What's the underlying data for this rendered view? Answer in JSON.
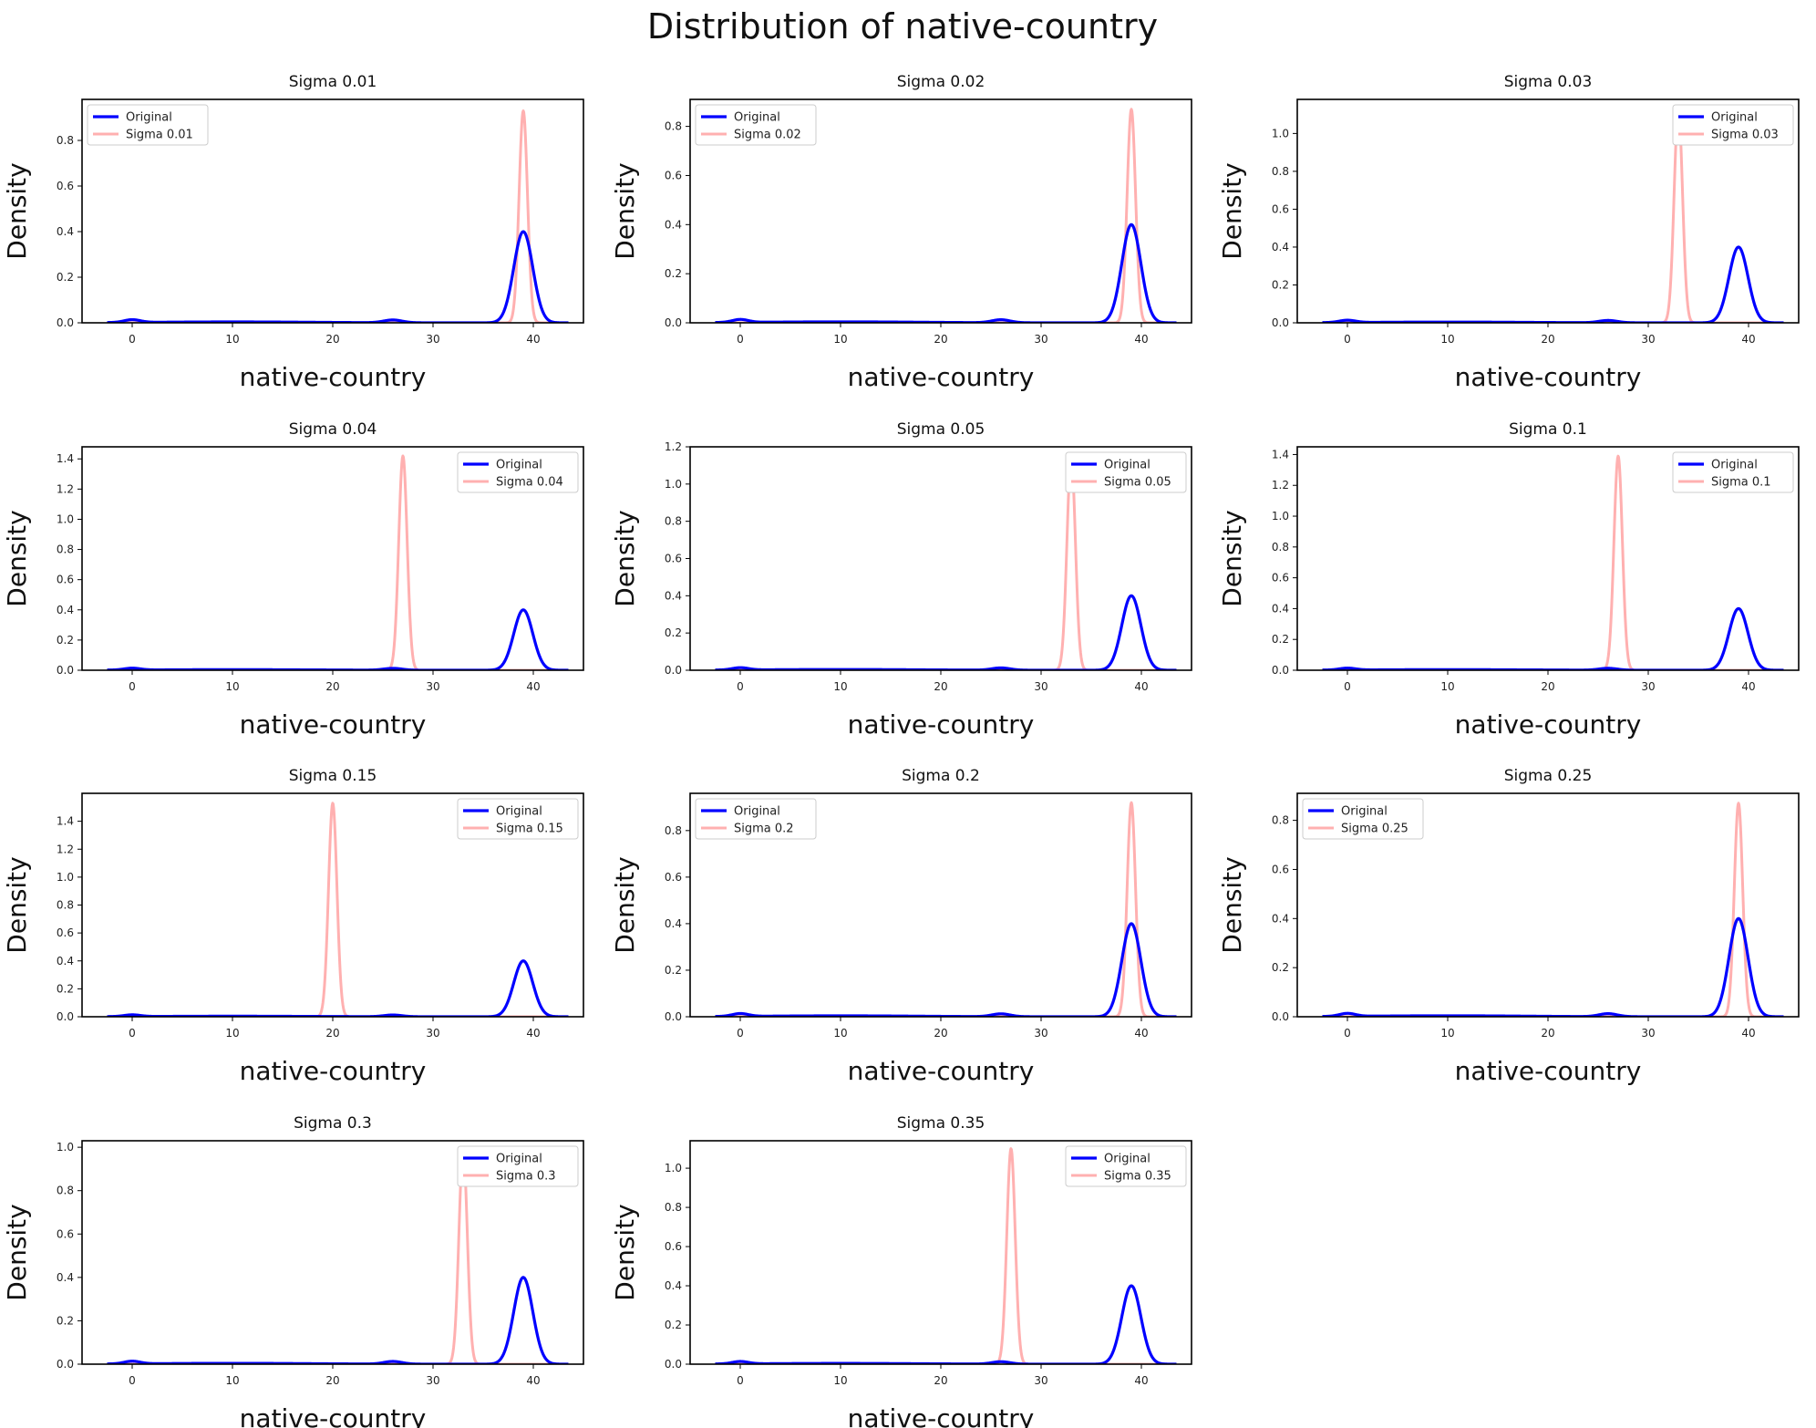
{
  "figure": {
    "title": "Distribution of native-country"
  },
  "colors": {
    "original": "#0000ff",
    "noisy": "#ffb0b0"
  },
  "chart_data": [
    {
      "type": "line",
      "title": "Sigma 0.01",
      "xlabel": "native-country",
      "ylabel": "Density",
      "xlim": [
        -5,
        45
      ],
      "xticks": [
        0,
        10,
        20,
        30,
        40
      ],
      "ylim": [
        0,
        0.98
      ],
      "yticks": [
        0.0,
        0.2,
        0.4,
        0.6,
        0.8
      ],
      "legend": "top-left",
      "series": [
        {
          "name": "Original",
          "role": "original",
          "peak_x": 39,
          "peak_y": 0.4
        },
        {
          "name": "Sigma 0.01",
          "role": "noisy",
          "peak_x": 39,
          "peak_y": 0.93
        }
      ]
    },
    {
      "type": "line",
      "title": "Sigma 0.02",
      "xlabel": "native-country",
      "ylabel": "Density",
      "xlim": [
        -5,
        45
      ],
      "xticks": [
        0,
        10,
        20,
        30,
        40
      ],
      "ylim": [
        0,
        0.91
      ],
      "yticks": [
        0.0,
        0.2,
        0.4,
        0.6,
        0.8
      ],
      "legend": "top-left",
      "series": [
        {
          "name": "Original",
          "role": "original",
          "peak_x": 39,
          "peak_y": 0.4
        },
        {
          "name": "Sigma 0.02",
          "role": "noisy",
          "peak_x": 39,
          "peak_y": 0.87
        }
      ]
    },
    {
      "type": "line",
      "title": "Sigma 0.03",
      "xlabel": "native-country",
      "ylabel": "Density",
      "xlim": [
        -5,
        45
      ],
      "xticks": [
        0,
        10,
        20,
        30,
        40
      ],
      "ylim": [
        0,
        1.18
      ],
      "yticks": [
        0.0,
        0.2,
        0.4,
        0.6,
        0.8,
        1.0
      ],
      "legend": "top-right",
      "series": [
        {
          "name": "Original",
          "role": "original",
          "peak_x": 39,
          "peak_y": 0.4
        },
        {
          "name": "Sigma 0.03",
          "role": "noisy",
          "peak_x": 33,
          "peak_y": 1.13
        }
      ]
    },
    {
      "type": "line",
      "title": "Sigma 0.04",
      "xlabel": "native-country",
      "ylabel": "Density",
      "xlim": [
        -5,
        45
      ],
      "xticks": [
        0,
        10,
        20,
        30,
        40
      ],
      "ylim": [
        0,
        1.48
      ],
      "yticks": [
        0.0,
        0.2,
        0.4,
        0.6,
        0.8,
        1.0,
        1.2,
        1.4
      ],
      "legend": "top-right",
      "series": [
        {
          "name": "Original",
          "role": "original",
          "peak_x": 39,
          "peak_y": 0.4
        },
        {
          "name": "Sigma 0.04",
          "role": "noisy",
          "peak_x": 27,
          "peak_y": 1.42
        }
      ]
    },
    {
      "type": "line",
      "title": "Sigma 0.05",
      "xlabel": "native-country",
      "ylabel": "Density",
      "xlim": [
        -5,
        45
      ],
      "xticks": [
        0,
        10,
        20,
        30,
        40
      ],
      "ylim": [
        0,
        1.2
      ],
      "yticks": [
        0.0,
        0.2,
        0.4,
        0.6,
        0.8,
        1.0,
        1.2
      ],
      "legend": "top-right",
      "series": [
        {
          "name": "Original",
          "role": "original",
          "peak_x": 39,
          "peak_y": 0.4
        },
        {
          "name": "Sigma 0.05",
          "role": "noisy",
          "peak_x": 33,
          "peak_y": 1.15
        }
      ]
    },
    {
      "type": "line",
      "title": "Sigma 0.1",
      "xlabel": "native-country",
      "ylabel": "Density",
      "xlim": [
        -5,
        45
      ],
      "xticks": [
        0,
        10,
        20,
        30,
        40
      ],
      "ylim": [
        0,
        1.45
      ],
      "yticks": [
        0.0,
        0.2,
        0.4,
        0.6,
        0.8,
        1.0,
        1.2,
        1.4
      ],
      "legend": "top-right",
      "series": [
        {
          "name": "Original",
          "role": "original",
          "peak_x": 39,
          "peak_y": 0.4
        },
        {
          "name": "Sigma 0.1",
          "role": "noisy",
          "peak_x": 27,
          "peak_y": 1.39
        }
      ]
    },
    {
      "type": "line",
      "title": "Sigma 0.15",
      "xlabel": "native-country",
      "ylabel": "Density",
      "xlim": [
        -5,
        45
      ],
      "xticks": [
        0,
        10,
        20,
        30,
        40
      ],
      "ylim": [
        0,
        1.6
      ],
      "yticks": [
        0.0,
        0.2,
        0.4,
        0.6,
        0.8,
        1.0,
        1.2,
        1.4
      ],
      "legend": "top-right",
      "series": [
        {
          "name": "Original",
          "role": "original",
          "peak_x": 39,
          "peak_y": 0.4
        },
        {
          "name": "Sigma 0.15",
          "role": "noisy",
          "peak_x": 20,
          "peak_y": 1.53
        }
      ]
    },
    {
      "type": "line",
      "title": "Sigma 0.2",
      "xlabel": "native-country",
      "ylabel": "Density",
      "xlim": [
        -5,
        45
      ],
      "xticks": [
        0,
        10,
        20,
        30,
        40
      ],
      "ylim": [
        0,
        0.96
      ],
      "yticks": [
        0.0,
        0.2,
        0.4,
        0.6,
        0.8
      ],
      "legend": "top-left",
      "series": [
        {
          "name": "Original",
          "role": "original",
          "peak_x": 39,
          "peak_y": 0.4
        },
        {
          "name": "Sigma 0.2",
          "role": "noisy",
          "peak_x": 39,
          "peak_y": 0.92
        }
      ]
    },
    {
      "type": "line",
      "title": "Sigma 0.25",
      "xlabel": "native-country",
      "ylabel": "Density",
      "xlim": [
        -5,
        45
      ],
      "xticks": [
        0,
        10,
        20,
        30,
        40
      ],
      "ylim": [
        0,
        0.91
      ],
      "yticks": [
        0.0,
        0.2,
        0.4,
        0.6,
        0.8
      ],
      "legend": "top-left",
      "series": [
        {
          "name": "Original",
          "role": "original",
          "peak_x": 39,
          "peak_y": 0.4
        },
        {
          "name": "Sigma 0.25",
          "role": "noisy",
          "peak_x": 39,
          "peak_y": 0.87
        }
      ]
    },
    {
      "type": "line",
      "title": "Sigma 0.3",
      "xlabel": "native-country",
      "ylabel": "Density",
      "xlim": [
        -5,
        45
      ],
      "xticks": [
        0,
        10,
        20,
        30,
        40
      ],
      "ylim": [
        0,
        1.03
      ],
      "yticks": [
        0.0,
        0.2,
        0.4,
        0.6,
        0.8,
        1.0
      ],
      "legend": "top-right",
      "series": [
        {
          "name": "Original",
          "role": "original",
          "peak_x": 39,
          "peak_y": 0.4
        },
        {
          "name": "Sigma 0.3",
          "role": "noisy",
          "peak_x": 33,
          "peak_y": 0.99
        }
      ]
    },
    {
      "type": "line",
      "title": "Sigma 0.35",
      "xlabel": "native-country",
      "ylabel": "Density",
      "xlim": [
        -5,
        45
      ],
      "xticks": [
        0,
        10,
        20,
        30,
        40
      ],
      "ylim": [
        0,
        1.14
      ],
      "yticks": [
        0.0,
        0.2,
        0.4,
        0.6,
        0.8,
        1.0
      ],
      "legend": "top-right",
      "series": [
        {
          "name": "Original",
          "role": "original",
          "peak_x": 39,
          "peak_y": 0.4
        },
        {
          "name": "Sigma 0.35",
          "role": "noisy",
          "peak_x": 27,
          "peak_y": 1.1
        }
      ]
    }
  ]
}
